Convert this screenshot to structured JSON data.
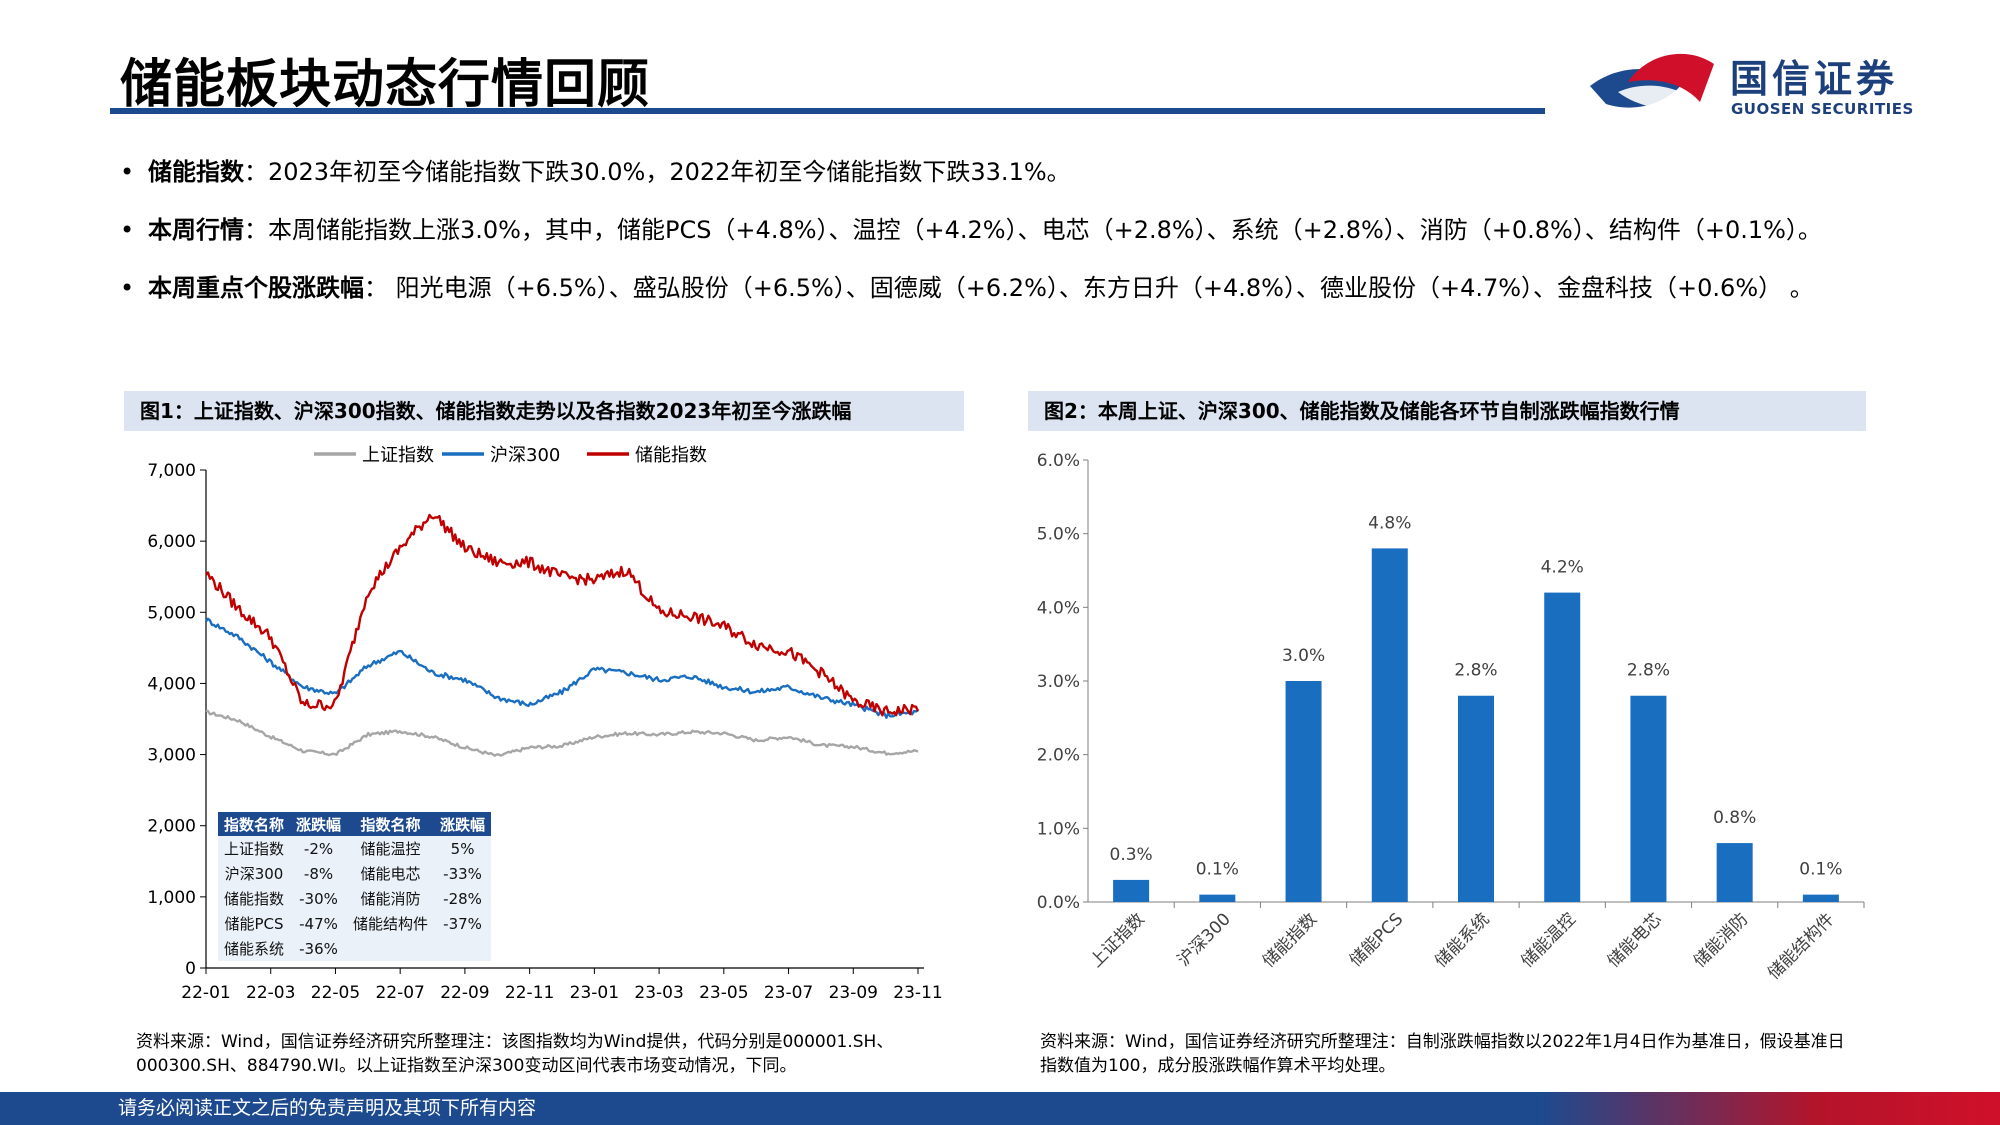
{
  "page": {
    "title": "储能板块动态行情回顾",
    "logo_cn": "国信证券",
    "logo_en": "GUOSEN SECURITIES",
    "footer": "请务必阅读正文之后的免责声明及其项下所有内容",
    "colors": {
      "brand_blue": "#1d4a8f",
      "brand_red": "#d0102a",
      "bar": "#1a6ec0"
    }
  },
  "bullets": [
    {
      "dot": "•",
      "lead": "储能指数",
      "text": "：2023年初至今储能指数下跌30.0%，2022年初至今储能指数下跌33.1%。"
    },
    {
      "dot": "•",
      "lead": "本周行情",
      "text": "：本周储能指数上涨3.0%，其中，储能PCS（+4.8%）、温控（+4.2%）、电芯（+2.8%）、系统（+2.8%）、消防（+0.8%）、结构件（+0.1%）。"
    },
    {
      "dot": "•",
      "lead": "本周重点个股涨跌幅",
      "text": "：  阳光电源（+6.5%）、盛弘股份（+6.5%）、固德威（+6.2%）、东方日升（+4.8%）、德业股份（+4.7%）、金盘科技（+0.6%） 。"
    }
  ],
  "figure1": {
    "title": "图1：上证指数、沪深300指数、储能指数走势以及各指数2023年初至今涨跌幅",
    "note": "资料来源：Wind，国信证券经济研究所整理注：该图指数均为Wind提供，代码分别是000001.SH、000300.SH、884790.WI。以上证指数至沪深300变动区间代表市场变动情况，下同。",
    "table": {
      "headers": [
        "指数名称",
        "涨跌幅",
        "指数名称",
        "涨跌幅"
      ],
      "rows": [
        [
          "上证指数",
          "-2%",
          "储能温控",
          "5%"
        ],
        [
          "沪深300",
          "-8%",
          "储能电芯",
          "-33%"
        ],
        [
          "储能指数",
          "-30%",
          "储能消防",
          "-28%"
        ],
        [
          "储能PCS",
          "-47%",
          "储能结构件",
          "-37%"
        ],
        [
          "储能系统",
          "-36%",
          "",
          ""
        ]
      ]
    }
  },
  "figure2": {
    "title": "图2：本周上证、沪深300、储能指数及储能各环节自制涨跌幅指数行情",
    "note": "资料来源：Wind，国信证券经济研究所整理注：自制涨跌幅指数以2022年1月4日作为基准日，假设基准日指数值为100，成分股涨跌幅作算术平均处理。"
  },
  "chart_data": [
    {
      "type": "line",
      "x_ticks": [
        "22-01",
        "22-03",
        "22-05",
        "22-07",
        "22-09",
        "22-11",
        "23-01",
        "23-03",
        "23-05",
        "23-07",
        "23-09",
        "23-11"
      ],
      "y_ticks": [
        "0",
        "1,000",
        "2,000",
        "3,000",
        "4,000",
        "5,000",
        "6,000",
        "7,000"
      ],
      "ylim": [
        0,
        7000
      ],
      "legend_position": "top",
      "series": [
        {
          "name": "上证指数",
          "color": "#a6a6a6",
          "points": [
            [
              "22-01",
              3600
            ],
            [
              "22-02",
              3480
            ],
            [
              "22-03",
              3250
            ],
            [
              "22-04",
              3050
            ],
            [
              "22-05",
              3000
            ],
            [
              "22-06",
              3280
            ],
            [
              "22-07",
              3330
            ],
            [
              "22-08",
              3250
            ],
            [
              "22-09",
              3100
            ],
            [
              "22-10",
              2980
            ],
            [
              "22-11",
              3100
            ],
            [
              "22-12",
              3120
            ],
            [
              "23-01",
              3250
            ],
            [
              "23-02",
              3300
            ],
            [
              "23-03",
              3280
            ],
            [
              "23-04",
              3320
            ],
            [
              "23-05",
              3300
            ],
            [
              "23-06",
              3200
            ],
            [
              "23-07",
              3250
            ],
            [
              "23-08",
              3130
            ],
            [
              "23-09",
              3110
            ],
            [
              "23-10",
              3020
            ],
            [
              "23-11",
              3050
            ]
          ]
        },
        {
          "name": "沪深300",
          "color": "#1a6ec0",
          "points": [
            [
              "22-01",
              4900
            ],
            [
              "22-02",
              4650
            ],
            [
              "22-03",
              4300
            ],
            [
              "22-04",
              3950
            ],
            [
              "22-05",
              3850
            ],
            [
              "22-06",
              4250
            ],
            [
              "22-07",
              4450
            ],
            [
              "22-08",
              4150
            ],
            [
              "22-09",
              4050
            ],
            [
              "22-10",
              3800
            ],
            [
              "22-11",
              3700
            ],
            [
              "22-12",
              3880
            ],
            [
              "23-01",
              4200
            ],
            [
              "23-02",
              4150
            ],
            [
              "23-03",
              4050
            ],
            [
              "23-04",
              4100
            ],
            [
              "23-05",
              3950
            ],
            [
              "23-06",
              3880
            ],
            [
              "23-07",
              3950
            ],
            [
              "23-08",
              3800
            ],
            [
              "23-09",
              3700
            ],
            [
              "23-10",
              3550
            ],
            [
              "23-11",
              3600
            ]
          ]
        },
        {
          "name": "储能指数",
          "color": "#c00000",
          "points": [
            [
              "22-01",
              5550
            ],
            [
              "22-02",
              5050
            ],
            [
              "22-03",
              4650
            ],
            [
              "22-04",
              3700
            ],
            [
              "22-05",
              3700
            ],
            [
              "22-06",
              5300
            ],
            [
              "22-07",
              5900
            ],
            [
              "22-08",
              6400
            ],
            [
              "22-09",
              5900
            ],
            [
              "22-10",
              5700
            ],
            [
              "22-11",
              5700
            ],
            [
              "22-12",
              5500
            ],
            [
              "23-01",
              5450
            ],
            [
              "23-02",
              5600
            ],
            [
              "23-03",
              5000
            ],
            [
              "23-04",
              4950
            ],
            [
              "23-05",
              4800
            ],
            [
              "23-06",
              4550
            ],
            [
              "23-07",
              4450
            ],
            [
              "23-08",
              4150
            ],
            [
              "23-09",
              3750
            ],
            [
              "23-10",
              3600
            ],
            [
              "23-11",
              3650
            ]
          ]
        }
      ]
    },
    {
      "type": "bar",
      "categories": [
        "上证指数",
        "沪深300",
        "储能指数",
        "储能PCS",
        "储能系统",
        "储能温控",
        "储能电芯",
        "储能消防",
        "储能结构件"
      ],
      "values": [
        0.3,
        0.1,
        3.0,
        4.8,
        2.8,
        4.2,
        2.8,
        0.8,
        0.1
      ],
      "data_labels": [
        "0.3%",
        "0.1%",
        "3.0%",
        "4.8%",
        "2.8%",
        "4.2%",
        "2.8%",
        "0.8%",
        "0.1%"
      ],
      "y_ticks": [
        "0.0%",
        "1.0%",
        "2.0%",
        "3.0%",
        "4.0%",
        "5.0%",
        "6.0%"
      ],
      "ylim": [
        0,
        6
      ],
      "color": "#1a6ec0"
    }
  ]
}
